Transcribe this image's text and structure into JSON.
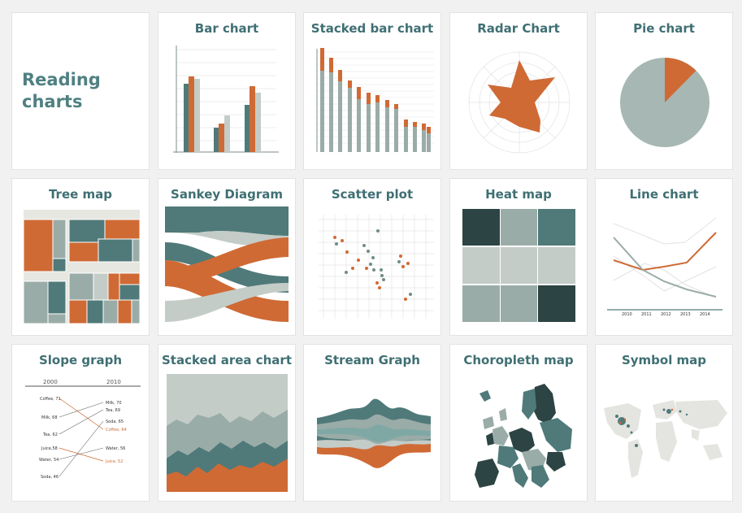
{
  "intro": {
    "line1": "Reading",
    "line2": "charts"
  },
  "cards": [
    {
      "title": "Bar chart"
    },
    {
      "title": "Stacked bar chart"
    },
    {
      "title": "Radar Chart"
    },
    {
      "title": "Pie chart"
    },
    {
      "title": "Tree map"
    },
    {
      "title": "Sankey Diagram"
    },
    {
      "title": "Scatter plot"
    },
    {
      "title": "Heat map"
    },
    {
      "title": "Line chart"
    },
    {
      "title": "Slope graph"
    },
    {
      "title": "Stacked area chart"
    },
    {
      "title": "Stream Graph"
    },
    {
      "title": "Choropleth map"
    },
    {
      "title": "Symbol map"
    }
  ],
  "colors": {
    "orange": "#cf6a35",
    "grey": "#9aaca8",
    "dark": "#2c4443",
    "teal": "#4f7a79",
    "light": "#c4ccc8",
    "title": "#3f6f73"
  },
  "line_chart": {
    "years": [
      "2010",
      "2011",
      "2012",
      "2013",
      "2014"
    ]
  },
  "slope_graph": {
    "years": [
      "2000",
      "2010"
    ],
    "left": [
      "Coffee, 71",
      "Milk, 68",
      "Tea, 62",
      "Juice,58",
      "Water, 54",
      "Soda, 46"
    ],
    "right": [
      "Milk, 70",
      "Tea, 69",
      "Soda, 65",
      "Coffee, 64",
      "Water, 56",
      "Juice, 52"
    ]
  }
}
